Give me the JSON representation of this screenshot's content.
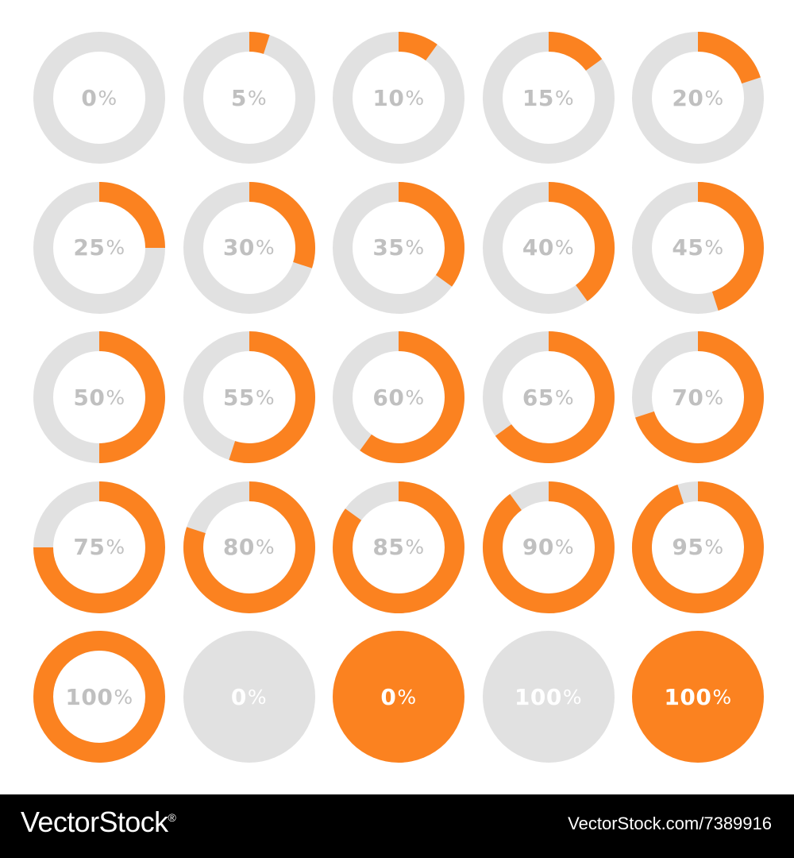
{
  "colors": {
    "accent": "#fb8220",
    "track": "#e1e1e1",
    "label": "#c0c0c0",
    "solid_label": "#ffffff"
  },
  "progress_rings": [
    {
      "label": "0",
      "unit": "%",
      "fraction": 0.0,
      "style": "ring"
    },
    {
      "label": "5",
      "unit": "%",
      "fraction": 0.05,
      "style": "ring"
    },
    {
      "label": "10",
      "unit": "%",
      "fraction": 0.1,
      "style": "ring"
    },
    {
      "label": "15",
      "unit": "%",
      "fraction": 0.15,
      "style": "ring"
    },
    {
      "label": "20",
      "unit": "%",
      "fraction": 0.2,
      "style": "ring"
    },
    {
      "label": "25",
      "unit": "%",
      "fraction": 0.25,
      "style": "ring"
    },
    {
      "label": "30",
      "unit": "%",
      "fraction": 0.3,
      "style": "ring"
    },
    {
      "label": "35",
      "unit": "%",
      "fraction": 0.35,
      "style": "ring"
    },
    {
      "label": "40",
      "unit": "%",
      "fraction": 0.4,
      "style": "ring"
    },
    {
      "label": "45",
      "unit": "%",
      "fraction": 0.45,
      "style": "ring"
    },
    {
      "label": "50",
      "unit": "%",
      "fraction": 0.5,
      "style": "ring"
    },
    {
      "label": "55",
      "unit": "%",
      "fraction": 0.55,
      "style": "ring"
    },
    {
      "label": "60",
      "unit": "%",
      "fraction": 0.6,
      "style": "ring"
    },
    {
      "label": "65",
      "unit": "%",
      "fraction": 0.65,
      "style": "ring"
    },
    {
      "label": "70",
      "unit": "%",
      "fraction": 0.7,
      "style": "ring"
    },
    {
      "label": "75",
      "unit": "%",
      "fraction": 0.75,
      "style": "ring"
    },
    {
      "label": "80",
      "unit": "%",
      "fraction": 0.8,
      "style": "ring"
    },
    {
      "label": "85",
      "unit": "%",
      "fraction": 0.85,
      "style": "ring"
    },
    {
      "label": "90",
      "unit": "%",
      "fraction": 0.9,
      "style": "ring"
    },
    {
      "label": "95",
      "unit": "%",
      "fraction": 0.95,
      "style": "ring"
    },
    {
      "label": "100",
      "unit": "%",
      "fraction": 1.0,
      "style": "ring"
    },
    {
      "label": "0",
      "unit": "%",
      "fraction": 0.0,
      "style": "solid-gray"
    },
    {
      "label": "0",
      "unit": "%",
      "fraction": 0.0,
      "style": "solid-orange"
    },
    {
      "label": "100",
      "unit": "%",
      "fraction": 1.0,
      "style": "solid-gray"
    },
    {
      "label": "100",
      "unit": "%",
      "fraction": 1.0,
      "style": "solid-orange"
    }
  ],
  "footer": {
    "brand": "VectorStock",
    "registered_mark": "®",
    "image_id": "VectorStock.com/7389916"
  }
}
